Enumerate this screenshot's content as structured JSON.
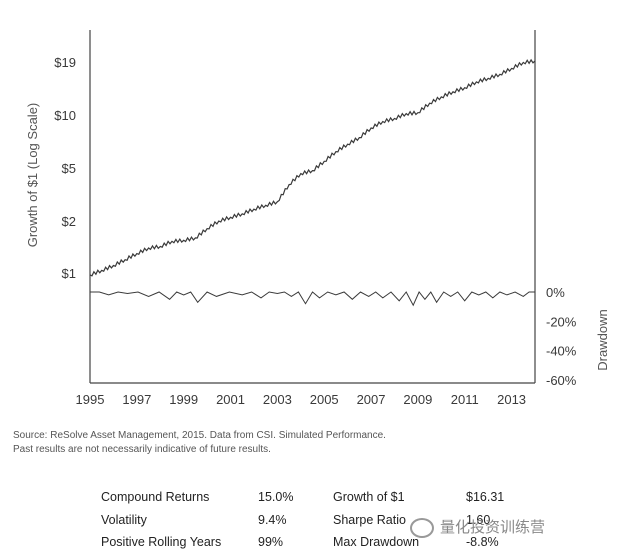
{
  "chart_data": {
    "type": "line",
    "ylabel": "Growth of $1 (Log Scale)",
    "y2label": "Drawdown",
    "yscale": "log",
    "x_ticks": [
      "1995",
      "1997",
      "1999",
      "2001",
      "2003",
      "2005",
      "2007",
      "2009",
      "2011",
      "2013"
    ],
    "y_ticks": [
      {
        "value": 1,
        "label": "$1"
      },
      {
        "value": 2,
        "label": "$2"
      },
      {
        "value": 5,
        "label": "$5"
      },
      {
        "value": 10,
        "label": "$10"
      },
      {
        "value": 19,
        "label": "$19"
      }
    ],
    "y2_ticks": [
      {
        "value": 0,
        "label": "0%"
      },
      {
        "value": -20,
        "label": "-20%"
      },
      {
        "value": -40,
        "label": "-40%"
      },
      {
        "value": -60,
        "label": "-60%"
      }
    ],
    "xlim": [
      1995,
      2014
    ],
    "ylim": [
      0.8,
      22
    ],
    "y2lim": [
      -60,
      0
    ],
    "series": [
      {
        "role": "growth",
        "x": [
          1995.0,
          1995.5,
          1996.0,
          1996.5,
          1997.0,
          1997.5,
          1998.0,
          1998.5,
          1999.0,
          1999.5,
          2000.0,
          2000.5,
          2001.0,
          2001.5,
          2002.0,
          2002.5,
          2003.0,
          2003.5,
          2004.0,
          2004.5,
          2005.0,
          2005.5,
          2006.0,
          2006.5,
          2007.0,
          2007.5,
          2008.0,
          2008.5,
          2009.0,
          2009.5,
          2010.0,
          2010.5,
          2011.0,
          2011.5,
          2012.0,
          2012.5,
          2013.0,
          2013.5,
          2014.0
        ],
        "values": [
          1.0,
          1.06,
          1.13,
          1.22,
          1.32,
          1.42,
          1.45,
          1.55,
          1.57,
          1.62,
          1.83,
          2.02,
          2.12,
          2.22,
          2.36,
          2.48,
          2.6,
          3.25,
          3.75,
          3.9,
          4.4,
          5.0,
          5.5,
          6.0,
          6.8,
          7.4,
          7.7,
          8.2,
          8.3,
          9.4,
          10.2,
          10.9,
          11.5,
          12.4,
          13.0,
          13.7,
          14.8,
          16.0,
          16.3
        ]
      },
      {
        "role": "drawdown",
        "x": [
          1995.0,
          1995.8,
          1996.6,
          1997.5,
          1998.4,
          1999.0,
          1999.6,
          2000.4,
          2001.5,
          2002.3,
          2003.0,
          2003.6,
          2004.2,
          2004.8,
          2005.5,
          2006.2,
          2006.9,
          2007.5,
          2008.2,
          2008.8,
          2009.3,
          2009.8,
          2010.4,
          2011.0,
          2011.6,
          2012.2,
          2012.8,
          2013.5,
          2014.0
        ],
        "values": [
          0,
          -2,
          -1,
          -3,
          -5,
          -2,
          -7,
          -3,
          -2,
          -4,
          -1,
          -3,
          -8,
          -4,
          -2,
          -5,
          -3,
          -4,
          -6,
          -9,
          -5,
          -7,
          -3,
          -6,
          -2,
          -4,
          -2,
          -3,
          0
        ]
      }
    ]
  },
  "source_note": {
    "line1": "Source: ReSolve Asset Management, 2015. Data from CSI. Simulated Performance.",
    "line2": "Past results are not necessarily indicative of future results."
  },
  "stats": {
    "compound_label": "Compound Returns",
    "compound_value": "15.0%",
    "volatility_label": "Volatility",
    "volatility_value": "9.4%",
    "rolling_label": "Positive Rolling Years",
    "rolling_value": "99%",
    "growth_label": "Growth of $1",
    "growth_value": "$16.31",
    "sharpe_label": "Sharpe Ratio",
    "sharpe_value": "1.60",
    "drawdown_label": "Max Drawdown",
    "drawdown_value": "-8.8%"
  },
  "watermark": "量化投资训练营",
  "colors": {
    "line": "#3a3a3a",
    "axis": "#444444"
  }
}
